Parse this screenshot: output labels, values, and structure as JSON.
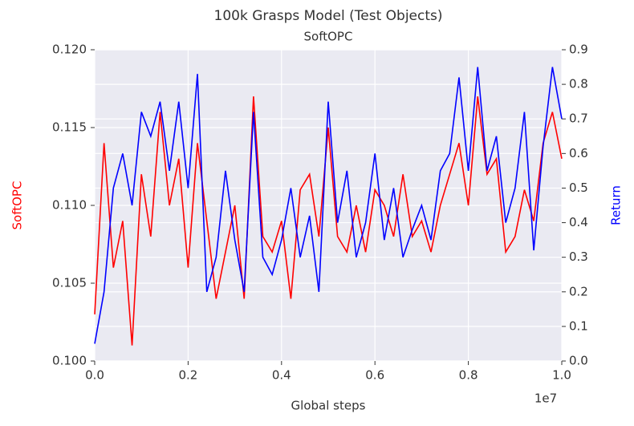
{
  "chart_data": {
    "type": "line",
    "title": "100k Grasps Model (Test Objects)",
    "subtitle": "SoftOPC",
    "x_label": "Global steps",
    "x_offset_label": "1e7",
    "y_label": "SoftOPC",
    "y2_label": "Return",
    "grid": true,
    "x": [
      0,
      200000,
      400000,
      600000,
      800000,
      1000000,
      1200000,
      1400000,
      1600000,
      1800000,
      2000000,
      2200000,
      2400000,
      2600000,
      2800000,
      3000000,
      3200000,
      3400000,
      3600000,
      3800000,
      4000000,
      4200000,
      4400000,
      4600000,
      4800000,
      5000000,
      5200000,
      5400000,
      5600000,
      5800000,
      6000000,
      6200000,
      6400000,
      6600000,
      6800000,
      7000000,
      7200000,
      7400000,
      7600000,
      7800000,
      8000000,
      8200000,
      8400000,
      8600000,
      8800000,
      9000000,
      9200000,
      9400000,
      9600000,
      9800000,
      10000000
    ],
    "series": [
      {
        "name": "SoftOPC",
        "color": "#ff0000",
        "axis": "y",
        "values": [
          0.103,
          0.114,
          0.106,
          0.109,
          0.101,
          0.112,
          0.108,
          0.116,
          0.11,
          0.113,
          0.106,
          0.114,
          0.109,
          0.104,
          0.107,
          0.11,
          0.104,
          0.117,
          0.108,
          0.107,
          0.109,
          0.104,
          0.111,
          0.112,
          0.108,
          0.115,
          0.108,
          0.107,
          0.11,
          0.107,
          0.111,
          0.11,
          0.108,
          0.112,
          0.108,
          0.109,
          0.107,
          0.11,
          0.112,
          0.114,
          0.11,
          0.117,
          0.112,
          0.113,
          0.107,
          0.108,
          0.111,
          0.109,
          0.114,
          0.116,
          0.113
        ]
      },
      {
        "name": "Return",
        "color": "#0000ff",
        "axis": "y2",
        "values": [
          0.05,
          0.2,
          0.5,
          0.6,
          0.45,
          0.72,
          0.65,
          0.75,
          0.55,
          0.75,
          0.5,
          0.83,
          0.2,
          0.3,
          0.55,
          0.35,
          0.2,
          0.72,
          0.3,
          0.25,
          0.35,
          0.5,
          0.3,
          0.42,
          0.2,
          0.75,
          0.4,
          0.55,
          0.3,
          0.4,
          0.6,
          0.35,
          0.5,
          0.3,
          0.38,
          0.45,
          0.35,
          0.55,
          0.6,
          0.82,
          0.55,
          0.85,
          0.55,
          0.65,
          0.4,
          0.5,
          0.72,
          0.32,
          0.62,
          0.85,
          0.7
        ]
      }
    ],
    "xlim": [
      0,
      10000000
    ],
    "xticks": [
      {
        "value": 0,
        "label": "0.0"
      },
      {
        "value": 2000000,
        "label": "0.2"
      },
      {
        "value": 4000000,
        "label": "0.4"
      },
      {
        "value": 6000000,
        "label": "0.6"
      },
      {
        "value": 8000000,
        "label": "0.8"
      },
      {
        "value": 10000000,
        "label": "1.0"
      }
    ],
    "ylim": [
      0.1,
      0.12
    ],
    "yticks": [
      {
        "value": 0.1,
        "label": "0.100"
      },
      {
        "value": 0.105,
        "label": "0.105"
      },
      {
        "value": 0.11,
        "label": "0.110"
      },
      {
        "value": 0.115,
        "label": "0.115"
      },
      {
        "value": 0.12,
        "label": "0.120"
      }
    ],
    "y2lim": [
      0,
      0.9
    ],
    "y2ticks": [
      {
        "value": 0,
        "label": "0.0"
      },
      0.1,
      0.2,
      0.3,
      0.4,
      0.5,
      0.6,
      0.7,
      0.8,
      0.9
    ]
  }
}
